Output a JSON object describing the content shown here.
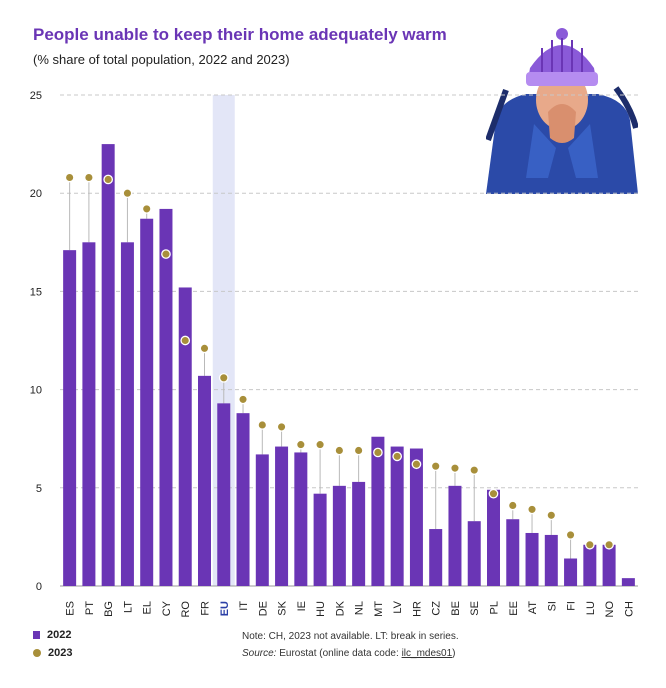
{
  "header": {
    "title": "People unable to keep their home adequately warm",
    "subtitle": "(% share of total population, 2022 and 2023)"
  },
  "legend": {
    "series_2022": "2022",
    "series_2023": "2023"
  },
  "footer": {
    "note": "Note: CH, 2023 not available. LT: break in series.",
    "source_label": "Source:",
    "source_text": "Eurostat (online data code: ",
    "source_code": "ilc_mdes01",
    "source_close": ")"
  },
  "colors": {
    "bar": "#6a35b5",
    "dot": "#a88f3a",
    "highlight": "#e3e6f7",
    "grid": "#c8c8c8"
  },
  "chart_data": {
    "type": "bar",
    "title": "People unable to keep their home adequately warm",
    "subtitle": "(% share of total population, 2022 and 2023)",
    "xlabel": "",
    "ylabel": "",
    "ylim": [
      0,
      25
    ],
    "yticks": [
      0,
      5,
      10,
      15,
      20,
      25
    ],
    "grid": true,
    "highlight_category": "EU",
    "categories": [
      "ES",
      "PT",
      "BG",
      "LT",
      "EL",
      "CY",
      "RO",
      "FR",
      "EU",
      "IT",
      "DE",
      "SK",
      "IE",
      "HU",
      "DK",
      "NL",
      "MT",
      "LV",
      "HR",
      "CZ",
      "BE",
      "SE",
      "PL",
      "EE",
      "AT",
      "SI",
      "FI",
      "LU",
      "NO",
      "CH"
    ],
    "series": [
      {
        "name": "2022",
        "kind": "bar",
        "values": [
          17.1,
          17.5,
          22.5,
          17.5,
          18.7,
          19.2,
          15.2,
          10.7,
          9.3,
          8.8,
          6.7,
          7.1,
          6.8,
          4.7,
          5.1,
          5.3,
          7.6,
          7.1,
          7.0,
          2.9,
          5.1,
          3.3,
          4.9,
          3.4,
          2.7,
          2.6,
          1.4,
          2.1,
          2.1,
          0.4
        ]
      },
      {
        "name": "2023",
        "kind": "dot",
        "values": [
          20.8,
          20.8,
          20.7,
          20.0,
          19.2,
          16.9,
          12.5,
          12.1,
          10.6,
          9.5,
          8.2,
          8.1,
          7.2,
          7.2,
          6.9,
          6.9,
          6.8,
          6.6,
          6.2,
          6.1,
          6.0,
          5.9,
          4.7,
          4.1,
          3.9,
          3.6,
          2.6,
          2.1,
          2.1,
          null
        ]
      }
    ]
  }
}
